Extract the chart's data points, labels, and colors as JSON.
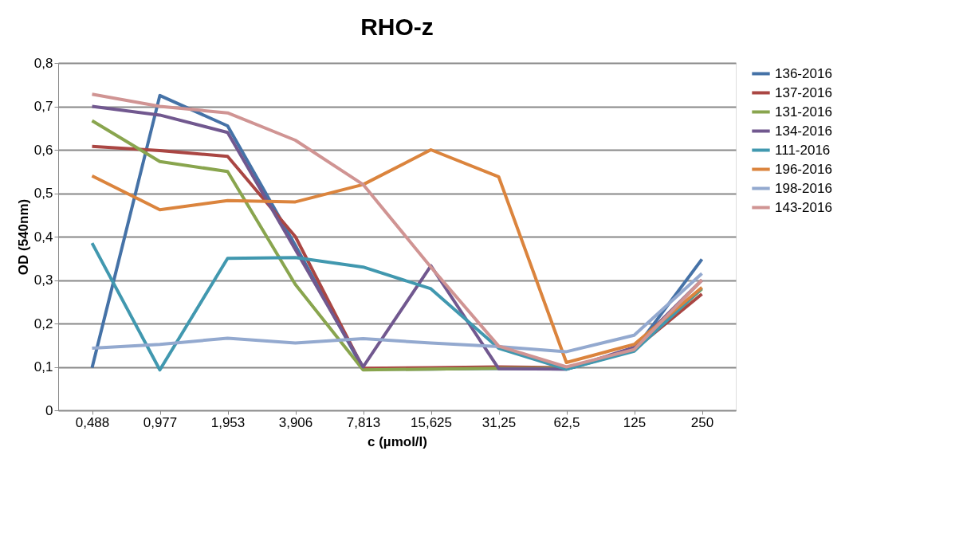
{
  "chart_data": {
    "type": "line",
    "title": "RHO-z",
    "xlabel": "c (µmol/l)",
    "ylabel": "OD (540nm)",
    "categories": [
      "0,488",
      "0,977",
      "1,953",
      "3,906",
      "7,813",
      "15,625",
      "31,25",
      "62,5",
      "125",
      "250"
    ],
    "ylim": [
      0,
      0.8
    ],
    "yticks": [
      0,
      {
        "value": 0.1,
        "label": "0,1"
      },
      {
        "value": 0.2,
        "label": "0,2"
      },
      {
        "value": 0.3,
        "label": "0,3"
      },
      {
        "value": 0.4,
        "label": "0,4"
      },
      {
        "value": 0.5,
        "label": "0,5"
      },
      {
        "value": 0.6,
        "label": "0,6"
      },
      {
        "value": 0.7,
        "label": "0,7"
      },
      {
        "value": 0.8,
        "label": "0,8"
      }
    ],
    "grid": "y",
    "legend": "right",
    "marker": "none",
    "line_style": "solid",
    "series": [
      {
        "name": "136-2016",
        "color": "#4572a7",
        "values": [
          0.098,
          0.725,
          0.655,
          0.38,
          0.095,
          0.095,
          0.097,
          0.095,
          0.138,
          0.348
        ]
      },
      {
        "name": "137-2016",
        "color": "#aa4643",
        "values": [
          0.608,
          0.598,
          0.585,
          0.4,
          0.097,
          0.098,
          0.1,
          0.098,
          0.14,
          0.268
        ]
      },
      {
        "name": "131-2016",
        "color": "#89a54e",
        "values": [
          0.667,
          0.573,
          0.55,
          0.29,
          0.093,
          0.095,
          0.097,
          0.097,
          0.14,
          0.28
        ]
      },
      {
        "name": "134-2016",
        "color": "#71588f",
        "values": [
          0.7,
          0.68,
          0.64,
          0.37,
          0.1,
          0.333,
          0.096,
          0.095,
          0.145,
          0.3
        ]
      },
      {
        "name": "111-2016",
        "color": "#4198af",
        "values": [
          0.385,
          0.093,
          0.35,
          0.352,
          0.33,
          0.28,
          0.143,
          0.095,
          0.136,
          0.282
        ]
      },
      {
        "name": "196-2016",
        "color": "#db843d",
        "values": [
          0.54,
          0.462,
          0.483,
          0.48,
          0.52,
          0.6,
          0.538,
          0.11,
          0.152,
          0.283
        ]
      },
      {
        "name": "198-2016",
        "color": "#93a9cf",
        "values": [
          0.143,
          0.152,
          0.166,
          0.155,
          0.165,
          0.155,
          0.147,
          0.135,
          0.173,
          0.315
        ]
      },
      {
        "name": "143-2016",
        "color": "#d09493",
        "values": [
          0.728,
          0.7,
          0.685,
          0.622,
          0.52,
          0.33,
          0.148,
          0.1,
          0.14,
          0.3
        ]
      }
    ]
  }
}
